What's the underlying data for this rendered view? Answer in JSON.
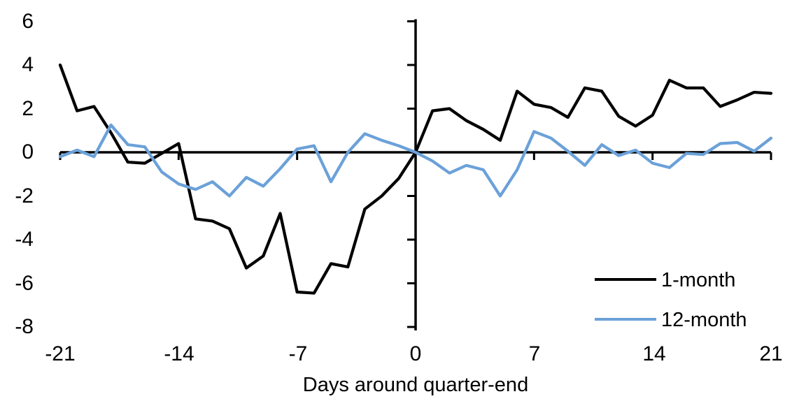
{
  "chart_data": {
    "type": "line",
    "x": [
      -21,
      -20,
      -19,
      -18,
      -17,
      -16,
      -15,
      -14,
      -13,
      -12,
      -11,
      -10,
      -9,
      -8,
      -7,
      -6,
      -5,
      -4,
      -3,
      -2,
      -1,
      0,
      1,
      2,
      3,
      4,
      5,
      6,
      7,
      8,
      9,
      10,
      11,
      12,
      13,
      14,
      15,
      16,
      17,
      18,
      19,
      20,
      21
    ],
    "series": [
      {
        "name": "1-month",
        "color": "#000000",
        "values": [
          4.0,
          1.9,
          2.1,
          0.9,
          -0.45,
          -0.5,
          -0.05,
          0.4,
          -3.05,
          -3.15,
          -3.5,
          -5.3,
          -4.75,
          -2.8,
          -6.4,
          -6.45,
          -5.1,
          -5.25,
          -2.6,
          -2.0,
          -1.2,
          0,
          1.9,
          2.0,
          1.45,
          1.05,
          0.55,
          2.8,
          2.2,
          2.05,
          1.6,
          2.95,
          2.8,
          1.65,
          1.2,
          1.7,
          3.3,
          2.95,
          2.95,
          2.1,
          2.4,
          2.75,
          2.7
        ]
      },
      {
        "name": "12-month",
        "color": "#6BA1D9",
        "values": [
          -0.2,
          0.1,
          -0.2,
          1.25,
          0.35,
          0.25,
          -0.9,
          -1.45,
          -1.7,
          -1.35,
          -2.0,
          -1.15,
          -1.55,
          -0.75,
          0.15,
          0.3,
          -1.35,
          0.0,
          0.85,
          0.55,
          0.3,
          0,
          -0.4,
          -0.95,
          -0.6,
          -0.8,
          -2.0,
          -0.8,
          0.95,
          0.65,
          0.05,
          -0.6,
          0.35,
          -0.15,
          0.1,
          -0.5,
          -0.7,
          -0.05,
          -0.1,
          0.4,
          0.45,
          0.05,
          0.65
        ]
      }
    ],
    "xlabel": "Days around quarter-end",
    "xticks": [
      -21,
      -14,
      -7,
      0,
      7,
      14,
      21
    ],
    "yticks": [
      6,
      4,
      2,
      0,
      -2,
      -4,
      -6,
      -8
    ],
    "xlim": [
      -21,
      21
    ],
    "ylim": [
      -8,
      6
    ],
    "grid": false,
    "legend_position": "inside-bottom-right",
    "background": "#ffffff",
    "axis_color": "#000000"
  }
}
